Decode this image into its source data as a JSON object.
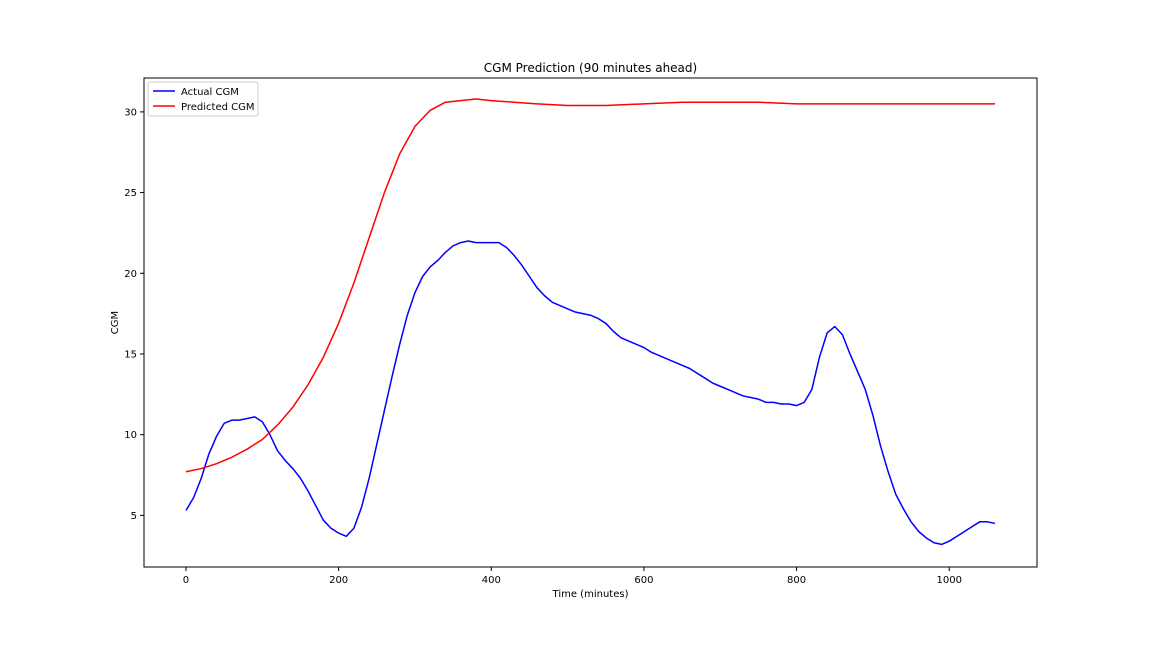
{
  "chart_data": {
    "type": "line",
    "title": "CGM Prediction (90 minutes ahead)",
    "xlabel": "Time (minutes)",
    "ylabel": "CGM",
    "xlim": [
      -55,
      1115
    ],
    "ylim": [
      1.8,
      32.1
    ],
    "xticks": [
      0,
      200,
      400,
      600,
      800,
      1000
    ],
    "yticks": [
      5,
      10,
      15,
      20,
      25,
      30
    ],
    "grid": false,
    "legend": "top-left",
    "series": [
      {
        "name": "Actual CGM",
        "color": "#0000ff",
        "points": [
          [
            0,
            5.3
          ],
          [
            10,
            6.1
          ],
          [
            20,
            7.3
          ],
          [
            30,
            8.8
          ],
          [
            40,
            9.9
          ],
          [
            50,
            10.7
          ],
          [
            60,
            10.9
          ],
          [
            70,
            10.9
          ],
          [
            80,
            11.0
          ],
          [
            90,
            11.1
          ],
          [
            100,
            10.8
          ],
          [
            110,
            10.0
          ],
          [
            120,
            9.0
          ],
          [
            130,
            8.4
          ],
          [
            140,
            7.9
          ],
          [
            150,
            7.3
          ],
          [
            160,
            6.5
          ],
          [
            170,
            5.6
          ],
          [
            180,
            4.7
          ],
          [
            190,
            4.2
          ],
          [
            200,
            3.9
          ],
          [
            210,
            3.7
          ],
          [
            220,
            4.2
          ],
          [
            230,
            5.5
          ],
          [
            240,
            7.3
          ],
          [
            250,
            9.4
          ],
          [
            260,
            11.5
          ],
          [
            270,
            13.6
          ],
          [
            280,
            15.6
          ],
          [
            290,
            17.4
          ],
          [
            300,
            18.8
          ],
          [
            310,
            19.8
          ],
          [
            320,
            20.4
          ],
          [
            330,
            20.8
          ],
          [
            340,
            21.3
          ],
          [
            350,
            21.7
          ],
          [
            360,
            21.9
          ],
          [
            370,
            22.0
          ],
          [
            380,
            21.9
          ],
          [
            390,
            21.9
          ],
          [
            400,
            21.9
          ],
          [
            410,
            21.9
          ],
          [
            420,
            21.6
          ],
          [
            430,
            21.1
          ],
          [
            440,
            20.5
          ],
          [
            450,
            19.8
          ],
          [
            460,
            19.1
          ],
          [
            470,
            18.6
          ],
          [
            480,
            18.2
          ],
          [
            490,
            18.0
          ],
          [
            500,
            17.8
          ],
          [
            510,
            17.6
          ],
          [
            520,
            17.5
          ],
          [
            530,
            17.4
          ],
          [
            540,
            17.2
          ],
          [
            550,
            16.9
          ],
          [
            560,
            16.4
          ],
          [
            570,
            16.0
          ],
          [
            580,
            15.8
          ],
          [
            590,
            15.6
          ],
          [
            600,
            15.4
          ],
          [
            610,
            15.1
          ],
          [
            620,
            14.9
          ],
          [
            630,
            14.7
          ],
          [
            640,
            14.5
          ],
          [
            650,
            14.3
          ],
          [
            660,
            14.1
          ],
          [
            670,
            13.8
          ],
          [
            680,
            13.5
          ],
          [
            690,
            13.2
          ],
          [
            700,
            13.0
          ],
          [
            710,
            12.8
          ],
          [
            720,
            12.6
          ],
          [
            730,
            12.4
          ],
          [
            740,
            12.3
          ],
          [
            750,
            12.2
          ],
          [
            760,
            12.0
          ],
          [
            770,
            12.0
          ],
          [
            780,
            11.9
          ],
          [
            790,
            11.9
          ],
          [
            800,
            11.8
          ],
          [
            810,
            12.0
          ],
          [
            820,
            12.8
          ],
          [
            830,
            14.8
          ],
          [
            840,
            16.3
          ],
          [
            850,
            16.7
          ],
          [
            860,
            16.2
          ],
          [
            870,
            15.0
          ],
          [
            880,
            13.9
          ],
          [
            890,
            12.8
          ],
          [
            900,
            11.2
          ],
          [
            910,
            9.3
          ],
          [
            920,
            7.7
          ],
          [
            930,
            6.3
          ],
          [
            940,
            5.4
          ],
          [
            950,
            4.6
          ],
          [
            960,
            4.0
          ],
          [
            970,
            3.6
          ],
          [
            980,
            3.3
          ],
          [
            990,
            3.2
          ],
          [
            1000,
            3.4
          ],
          [
            1010,
            3.7
          ],
          [
            1020,
            4.0
          ],
          [
            1030,
            4.3
          ],
          [
            1040,
            4.6
          ],
          [
            1050,
            4.6
          ],
          [
            1060,
            4.5
          ]
        ]
      },
      {
        "name": "Predicted CGM",
        "color": "#ff0000",
        "points": [
          [
            0,
            7.7
          ],
          [
            20,
            7.9
          ],
          [
            40,
            8.2
          ],
          [
            60,
            8.6
          ],
          [
            80,
            9.1
          ],
          [
            100,
            9.7
          ],
          [
            120,
            10.6
          ],
          [
            140,
            11.7
          ],
          [
            160,
            13.1
          ],
          [
            180,
            14.8
          ],
          [
            200,
            16.9
          ],
          [
            220,
            19.4
          ],
          [
            240,
            22.2
          ],
          [
            260,
            25.0
          ],
          [
            280,
            27.4
          ],
          [
            300,
            29.1
          ],
          [
            320,
            30.1
          ],
          [
            340,
            30.6
          ],
          [
            360,
            30.7
          ],
          [
            380,
            30.8
          ],
          [
            400,
            30.7
          ],
          [
            430,
            30.6
          ],
          [
            460,
            30.5
          ],
          [
            500,
            30.4
          ],
          [
            550,
            30.4
          ],
          [
            600,
            30.5
          ],
          [
            650,
            30.6
          ],
          [
            700,
            30.6
          ],
          [
            750,
            30.6
          ],
          [
            800,
            30.5
          ],
          [
            850,
            30.5
          ],
          [
            900,
            30.5
          ],
          [
            950,
            30.5
          ],
          [
            1000,
            30.5
          ],
          [
            1060,
            30.5
          ]
        ]
      }
    ]
  }
}
